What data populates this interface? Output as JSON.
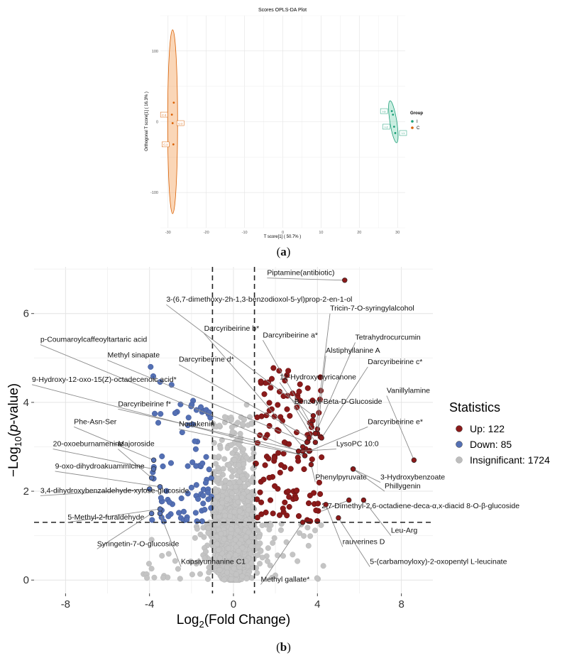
{
  "panel_labels": {
    "a_open": "(",
    "a_letter": "a",
    "a_close": ")",
    "b_open": "(",
    "b_letter": "b",
    "b_close": ")"
  },
  "chart_data": [
    {
      "type": "scatter",
      "title": "Scores OPLS-DA Plot",
      "xlabel": "T score[1] ( 50.7% )",
      "ylabel": "Orthogonal T score[1] ( 16.3% )",
      "xlim": [
        -32,
        32
      ],
      "ylim": [
        -150,
        150
      ],
      "xticks": [
        -30,
        -20,
        -10,
        0,
        10,
        20,
        30
      ],
      "yticks": [
        -100,
        0,
        100
      ],
      "grid": true,
      "legend": {
        "title": "Group",
        "position": "right",
        "items": [
          {
            "name": "I",
            "color": "#1b9e77"
          },
          {
            "name": "C",
            "color": "#d95f02"
          }
        ]
      },
      "series": [
        {
          "name": "C",
          "color": "#d95f02",
          "points": [
            {
              "x": -28.5,
              "y": 27,
              "label": ""
            },
            {
              "x": -29,
              "y": 10,
              "label": "C-3"
            },
            {
              "x": -28.8,
              "y": -2,
              "label": "C-2"
            },
            {
              "x": -28.6,
              "y": -32,
              "label": "C-1"
            }
          ],
          "ellipse": {
            "cx": -28.8,
            "cy": 0,
            "rx": 1.3,
            "ry": 130
          }
        },
        {
          "name": "I",
          "color": "#1b9e77",
          "points": [
            {
              "x": 28.5,
              "y": 15,
              "label": "I-3"
            },
            {
              "x": 28.8,
              "y": 10,
              "label": ""
            },
            {
              "x": 29.1,
              "y": -7,
              "label": "I-2"
            },
            {
              "x": 29.4,
              "y": -16,
              "label": "I-1"
            }
          ],
          "ellipse": {
            "cx": 28.9,
            "cy": 0,
            "rx": 0.9,
            "ry": 30,
            "angle": -9
          }
        }
      ]
    },
    {
      "type": "scatter",
      "title": "",
      "xlabel_main": "Log",
      "xlabel_sub": "2",
      "xlabel_rest": "(Fold Change)",
      "ylabel_prefix": "−Log",
      "ylabel_sub": "10",
      "ylabel_open": "(",
      "ylabel_italic": "p",
      "ylabel_rest": "-value)",
      "xlim": [
        -9.5,
        9.5
      ],
      "ylim": [
        -0.3,
        7.05
      ],
      "xticks": [
        -8,
        -4,
        0,
        4,
        8
      ],
      "xtick_labels": [
        "-8",
        "-4",
        "0",
        "4",
        "8"
      ],
      "yticks": [
        0,
        2,
        4,
        6
      ],
      "ytick_labels": [
        "0",
        "2",
        "4",
        "6"
      ],
      "thresholds": {
        "fold_change": [
          -1,
          1
        ],
        "p_value": 1.3
      },
      "grid": true,
      "legend": {
        "title": "Statistics",
        "position": "right",
        "items": [
          {
            "label": "Up: 122",
            "color": "#8b1a1a"
          },
          {
            "label": "Down: 85",
            "color": "#5470b4"
          },
          {
            "label": "Insignificant: 1724",
            "color": "#bdbdbd"
          }
        ]
      },
      "counts": {
        "up": 122,
        "down": 85,
        "insignificant": 1724
      },
      "annotations": [
        {
          "text": "Piptamine(antibiotic)",
          "x": 5.3,
          "y": 6.75,
          "label_x": 1.6,
          "label_y": 6.8
        },
        {
          "text": "3-(6,7-dimethoxy-2h-1,3-benzodioxol-5-yl)prop-2-en-1-ol",
          "x": 3.8,
          "y": 3.7,
          "label_x": -3.2,
          "label_y": 6.2
        },
        {
          "text": "Tricin-7-O-syringylalcohol",
          "x": 3.9,
          "y": 3.3,
          "label_x": 4.6,
          "label_y": 6.0
        },
        {
          "text": "Darcyribeirine b*",
          "x": 3.3,
          "y": 3.0,
          "label_x": -1.4,
          "label_y": 5.55
        },
        {
          "text": "Darcyribeirine a*",
          "x": 3.7,
          "y": 3.5,
          "label_x": 1.4,
          "label_y": 5.4
        },
        {
          "text": "Tetrahydrocurcumin",
          "x": 4.0,
          "y": 3.4,
          "label_x": 5.8,
          "label_y": 5.35
        },
        {
          "text": "p-Coumaroylcaffeoyltartaric acid",
          "x": 3.1,
          "y": 2.9,
          "label_x": -9.2,
          "label_y": 5.3
        },
        {
          "text": "Alstiphyllanine A",
          "x": 4.0,
          "y": 3.3,
          "label_x": 4.4,
          "label_y": 5.05
        },
        {
          "text": "Methyl sinapate",
          "x": 3.5,
          "y": 3.1,
          "label_x": -6.0,
          "label_y": 4.95
        },
        {
          "text": "Darcyribeirine d*",
          "x": 3.6,
          "y": 3.2,
          "label_x": -2.6,
          "label_y": 4.85
        },
        {
          "text": "Darcyribeirine c*",
          "x": 4.2,
          "y": 3.2,
          "label_x": 6.4,
          "label_y": 4.8
        },
        {
          "text": "12-Hydroxymyricanone",
          "x": 3.9,
          "y": 3.3,
          "label_x": 2.2,
          "label_y": 4.45
        },
        {
          "text": "9-Hydroxy-12-oxo-15(Z)-octadecenoic acid*",
          "x": 3.4,
          "y": 2.8,
          "label_x": -9.6,
          "label_y": 4.4
        },
        {
          "text": "Vanillylamine",
          "x": 8.6,
          "y": 2.7,
          "label_x": 7.3,
          "label_y": 4.15
        },
        {
          "text": "Benzoyl-Beta-D-Glucoside",
          "x": 3.9,
          "y": 3.1,
          "label_x": 2.9,
          "label_y": 3.9
        },
        {
          "text": "Darcyribeirine f*",
          "x": 3.3,
          "y": 2.9,
          "label_x": -5.5,
          "label_y": 3.85
        },
        {
          "text": "Darcyribeirine e*",
          "x": 3.6,
          "y": 2.9,
          "label_x": 6.4,
          "label_y": 3.45
        },
        {
          "text": "Phe-Asn-Ser",
          "x": -3.8,
          "y": 2.7,
          "label_x": -7.6,
          "label_y": 3.45
        },
        {
          "text": "Nodakenin",
          "x": 3.4,
          "y": 2.8,
          "label_x": -2.6,
          "label_y": 3.4
        },
        {
          "text": "LysoPC 10:0",
          "x": 3.1,
          "y": 2.9,
          "label_x": 4.9,
          "label_y": 2.95
        },
        {
          "text": "20-oxoeburnamenine",
          "x": -3.8,
          "y": 2.5,
          "label_x": -8.6,
          "label_y": 2.95
        },
        {
          "text": "Majoroside",
          "x": -3.9,
          "y": 2.3,
          "label_x": -5.5,
          "label_y": 2.95
        },
        {
          "text": "9-oxo-dihydroakuammicine",
          "x": -3.5,
          "y": 2.1,
          "label_x": -8.5,
          "label_y": 2.45
        },
        {
          "text": "Phenylpyruvate",
          "x": 3.7,
          "y": 2.6,
          "label_x": 3.9,
          "label_y": 2.2
        },
        {
          "text": "3-Hydroxybenzoate",
          "x": 5.7,
          "y": 2.5,
          "label_x": 7.0,
          "label_y": 2.2
        },
        {
          "text": "Phillygenin",
          "x": 5.7,
          "y": 2.5,
          "label_x": 7.2,
          "label_y": 2.0
        },
        {
          "text": "3,4-dihydroxybenzaldehyde-xylose-glucoside",
          "x": -4.0,
          "y": 2.05,
          "label_x": -9.2,
          "label_y": 1.9
        },
        {
          "text": "2,7-Dimethyl-2,6-octadiene-deca-α,x-diacid 8-O-β-glucoside",
          "x": 5.5,
          "y": 1.8,
          "label_x": 4.2,
          "label_y": 1.55
        },
        {
          "text": "5-Methyl-2-furaldehyde",
          "x": -3.5,
          "y": 1.6,
          "label_x": -7.9,
          "label_y": 1.3
        },
        {
          "text": "Leu-Arg",
          "x": 6.2,
          "y": 1.8,
          "label_x": 7.5,
          "label_y": 1.0
        },
        {
          "text": "rauverines D",
          "x": 4.4,
          "y": 1.7,
          "label_x": 5.2,
          "label_y": 0.75
        },
        {
          "text": "Syringetin-7-O-glucoside",
          "x": -3.9,
          "y": 1.5,
          "label_x": -6.5,
          "label_y": 0.7
        },
        {
          "text": "Kopsiyunnanine C1",
          "x": -3.5,
          "y": 1.5,
          "label_x": -2.5,
          "label_y": 0.3
        },
        {
          "text": "5-(carbamoyloxy)-2-oxopentyl L-leucinate",
          "x": 5.0,
          "y": 1.4,
          "label_x": 6.5,
          "label_y": 0.3
        },
        {
          "text": "Methyl gallate*",
          "x": 3.3,
          "y": 1.3,
          "label_x": 1.3,
          "label_y": -0.1
        }
      ]
    }
  ]
}
